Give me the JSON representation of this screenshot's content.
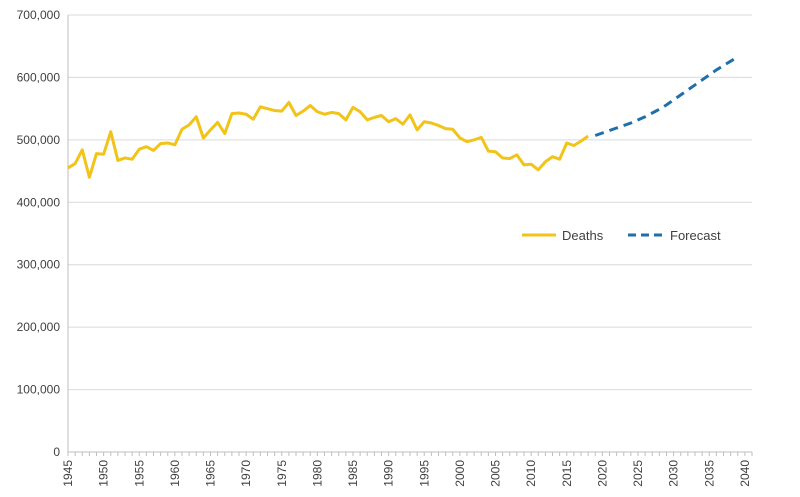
{
  "chart_data": {
    "type": "line",
    "y_ticks": [
      "0",
      "100,000",
      "200,000",
      "300,000",
      "400,000",
      "500,000",
      "600,000",
      "700,000"
    ],
    "ylim": [
      0,
      700000
    ],
    "x_ticks": [
      "1945",
      "1950",
      "1955",
      "1960",
      "1965",
      "1970",
      "1975",
      "1980",
      "1985",
      "1990",
      "1995",
      "2000",
      "2005",
      "2010",
      "2015",
      "2020",
      "2025",
      "2030",
      "2035",
      "2040"
    ],
    "xlim": [
      1945,
      2041
    ],
    "grid": "horizontal",
    "legend_position": "right-middle",
    "series": [
      {
        "name": "Deaths",
        "style": "solid",
        "color": "#F2C319",
        "x": [
          1945,
          1946,
          1947,
          1948,
          1949,
          1950,
          1951,
          1952,
          1953,
          1954,
          1955,
          1956,
          1957,
          1958,
          1959,
          1960,
          1961,
          1962,
          1963,
          1964,
          1965,
          1966,
          1967,
          1968,
          1969,
          1970,
          1971,
          1972,
          1973,
          1974,
          1975,
          1976,
          1977,
          1978,
          1979,
          1980,
          1981,
          1982,
          1983,
          1984,
          1985,
          1986,
          1987,
          1988,
          1989,
          1990,
          1991,
          1992,
          1993,
          1994,
          1995,
          1996,
          1997,
          1998,
          1999,
          2000,
          2001,
          2002,
          2003,
          2004,
          2005,
          2006,
          2007,
          2008,
          2009,
          2010,
          2011,
          2012,
          2013,
          2014,
          2015,
          2016,
          2017,
          2018
        ],
        "values": [
          455000,
          462000,
          484000,
          440000,
          478000,
          477000,
          513000,
          467000,
          471000,
          469000,
          485000,
          489000,
          483000,
          494000,
          495000,
          492000,
          517000,
          524000,
          537000,
          503000,
          516000,
          528000,
          510000,
          542000,
          543000,
          541000,
          533000,
          553000,
          550000,
          547000,
          546000,
          560000,
          539000,
          546000,
          555000,
          545000,
          541000,
          544000,
          542000,
          532000,
          552000,
          545000,
          532000,
          536000,
          539000,
          529000,
          534000,
          525000,
          540000,
          516000,
          529000,
          527000,
          523000,
          518000,
          517000,
          503000,
          497000,
          500000,
          504000,
          482000,
          481000,
          471000,
          470000,
          476000,
          460000,
          461000,
          452000,
          465000,
          473000,
          469000,
          495000,
          491000,
          498000,
          506000
        ]
      },
      {
        "name": "Forecast",
        "style": "dashed",
        "color": "#1F6FA8",
        "x": [
          2019,
          2020,
          2021,
          2022,
          2023,
          2024,
          2025,
          2026,
          2027,
          2028,
          2029,
          2030,
          2031,
          2032,
          2033,
          2034,
          2035,
          2036,
          2037,
          2038,
          2039
        ],
        "values": [
          507000,
          511000,
          515000,
          519000,
          523000,
          527000,
          532000,
          537000,
          543000,
          549000,
          556000,
          564000,
          572000,
          580000,
          588000,
          596000,
          604000,
          612000,
          619000,
          626000,
          633000
        ]
      }
    ]
  }
}
